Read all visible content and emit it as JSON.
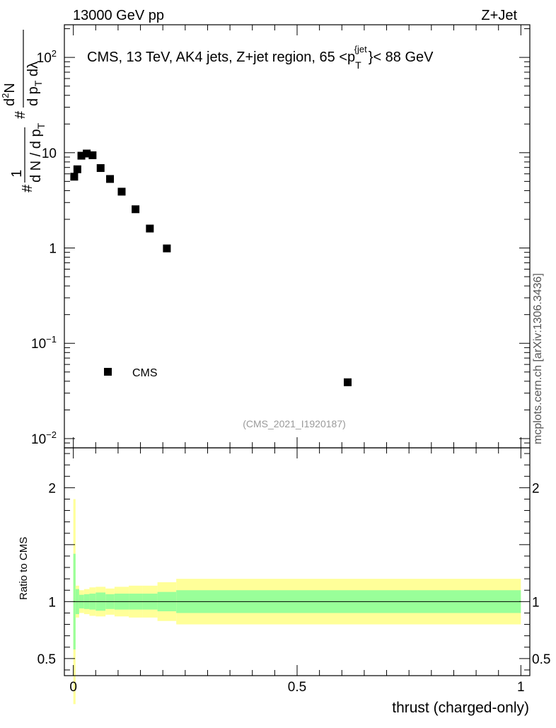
{
  "header": {
    "energy_label": "13000 GeV pp",
    "process_label": "Z+Jet"
  },
  "watermark": {
    "side_text": "mcplots.cern.ch [arXiv:1306.3436]",
    "analysis_id": "(CMS_2021_I1920187)"
  },
  "chart_data": [
    {
      "type": "scatter",
      "title": "CMS, 13 TeV, AK4 jets, Z+jet region, 65 <p_T^{jet}< 88 GeV",
      "title_parts": {
        "main": "CMS, 13 TeV, AK4 jets, Z+jet region, 65 <p",
        "sub": "T",
        "sup": "{jet",
        "tail": "}< 88 GeV"
      },
      "yscale": "log",
      "ylim": [
        0.008,
        220
      ],
      "xlim": [
        -0.02,
        1.02
      ],
      "ylabel": "1/(dN/dp_T) d²N/(dp_T dλ)",
      "ylabel_parts": {
        "hash": "#",
        "one": "1",
        "dn_over_dpt": "d N / d p",
        "T": "T",
        "num": "d",
        "two": "2",
        "N": "N",
        "den": "d p",
        "lam": " dλ"
      },
      "y_ticks": [
        {
          "value": 100,
          "label_base": "10",
          "label_exp": "2"
        },
        {
          "value": 10,
          "label_base": "10",
          "label_exp": ""
        },
        {
          "value": 1,
          "label_base": "1",
          "label_exp": ""
        },
        {
          "value": 0.1,
          "label_base": "10",
          "label_exp": "−1"
        },
        {
          "value": 0.01,
          "label_base": "10",
          "label_exp": "−2"
        }
      ],
      "series": [
        {
          "name": "CMS",
          "marker": "square",
          "color": "#000000",
          "points": [
            {
              "x": 0.002,
              "y": 5.6
            },
            {
              "x": 0.009,
              "y": 6.7
            },
            {
              "x": 0.018,
              "y": 9.3
            },
            {
              "x": 0.03,
              "y": 9.8
            },
            {
              "x": 0.043,
              "y": 9.4
            },
            {
              "x": 0.061,
              "y": 6.9
            },
            {
              "x": 0.082,
              "y": 5.3
            },
            {
              "x": 0.108,
              "y": 3.9
            },
            {
              "x": 0.139,
              "y": 2.55
            },
            {
              "x": 0.171,
              "y": 1.6
            },
            {
              "x": 0.209,
              "y": 0.99
            },
            {
              "x": 0.613,
              "y": 0.039
            }
          ]
        }
      ],
      "legend": {
        "label": "CMS",
        "position": "lower-left"
      }
    },
    {
      "type": "area",
      "ylabel": "Ratio to CMS",
      "xlabel": "thrust (charged-only)",
      "ylim": [
        0.35,
        2.35
      ],
      "xlim": [
        -0.02,
        1.02
      ],
      "y_ticks": [
        {
          "value": 0.5,
          "label": "0.5"
        },
        {
          "value": 1,
          "label": "1"
        },
        {
          "value": 2,
          "label": "2"
        }
      ],
      "x_ticks": [
        {
          "value": 0,
          "label": "0"
        },
        {
          "value": 0.5,
          "label": "0.5"
        },
        {
          "value": 1,
          "label": "1"
        }
      ],
      "reference_line": 1,
      "bands": {
        "bin_edges": [
          0.0,
          0.005,
          0.013,
          0.024,
          0.036,
          0.05,
          0.072,
          0.092,
          0.124,
          0.154,
          0.188,
          0.23,
          1.0
        ],
        "green_half_width": [
          0.42,
          0.11,
          0.06,
          0.065,
          0.07,
          0.08,
          0.065,
          0.07,
          0.07,
          0.07,
          0.085,
          0.1
        ],
        "yellow_half_width": [
          0.9,
          0.14,
          0.1,
          0.11,
          0.125,
          0.13,
          0.115,
          0.13,
          0.14,
          0.14,
          0.17,
          0.2
        ],
        "green_color": "#99ff99",
        "yellow_color": "#ffff99"
      }
    }
  ]
}
